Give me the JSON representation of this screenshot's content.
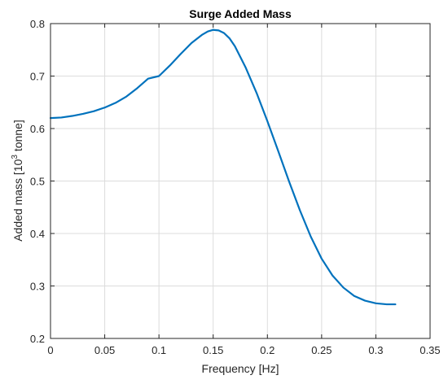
{
  "chart_data": {
    "type": "line",
    "title": "Surge Added Mass",
    "xlabel": "Frequency [Hz]",
    "ylabel": {
      "prefix": "Added mass [10",
      "superscript": "3",
      "suffix": " tonne]"
    },
    "xlim": [
      0,
      0.35
    ],
    "ylim": [
      0.2,
      0.8
    ],
    "x_ticks": [
      0,
      0.05,
      0.1,
      0.15,
      0.2,
      0.25,
      0.3,
      0.35
    ],
    "x_tick_labels": [
      "0",
      "0.05",
      "0.1",
      "0.15",
      "0.2",
      "0.25",
      "0.3",
      "0.35"
    ],
    "y_ticks": [
      0.2,
      0.3,
      0.4,
      0.5,
      0.6,
      0.7,
      0.8
    ],
    "y_tick_labels": [
      "0.2",
      "0.3",
      "0.4",
      "0.5",
      "0.6",
      "0.7",
      "0.8"
    ],
    "grid": true,
    "box": true,
    "colors": {
      "line": "#0072BD",
      "grid": "#dcdcdc",
      "axes": "#262626"
    },
    "series": [
      {
        "x": [
          0,
          0.01,
          0.02,
          0.03,
          0.04,
          0.05,
          0.06,
          0.07,
          0.08,
          0.09,
          0.1,
          0.11,
          0.12,
          0.13,
          0.14,
          0.145,
          0.15,
          0.155,
          0.16,
          0.165,
          0.17,
          0.18,
          0.19,
          0.2,
          0.21,
          0.22,
          0.23,
          0.24,
          0.25,
          0.26,
          0.27,
          0.28,
          0.29,
          0.3,
          0.31,
          0.318
        ],
        "y": [
          0.62,
          0.621,
          0.624,
          0.628,
          0.633,
          0.64,
          0.649,
          0.661,
          0.677,
          0.695,
          0.7,
          0.72,
          0.742,
          0.763,
          0.779,
          0.785,
          0.788,
          0.787,
          0.782,
          0.772,
          0.757,
          0.716,
          0.668,
          0.614,
          0.557,
          0.499,
          0.444,
          0.394,
          0.352,
          0.32,
          0.297,
          0.281,
          0.272,
          0.267,
          0.265,
          0.265
        ]
      }
    ]
  }
}
